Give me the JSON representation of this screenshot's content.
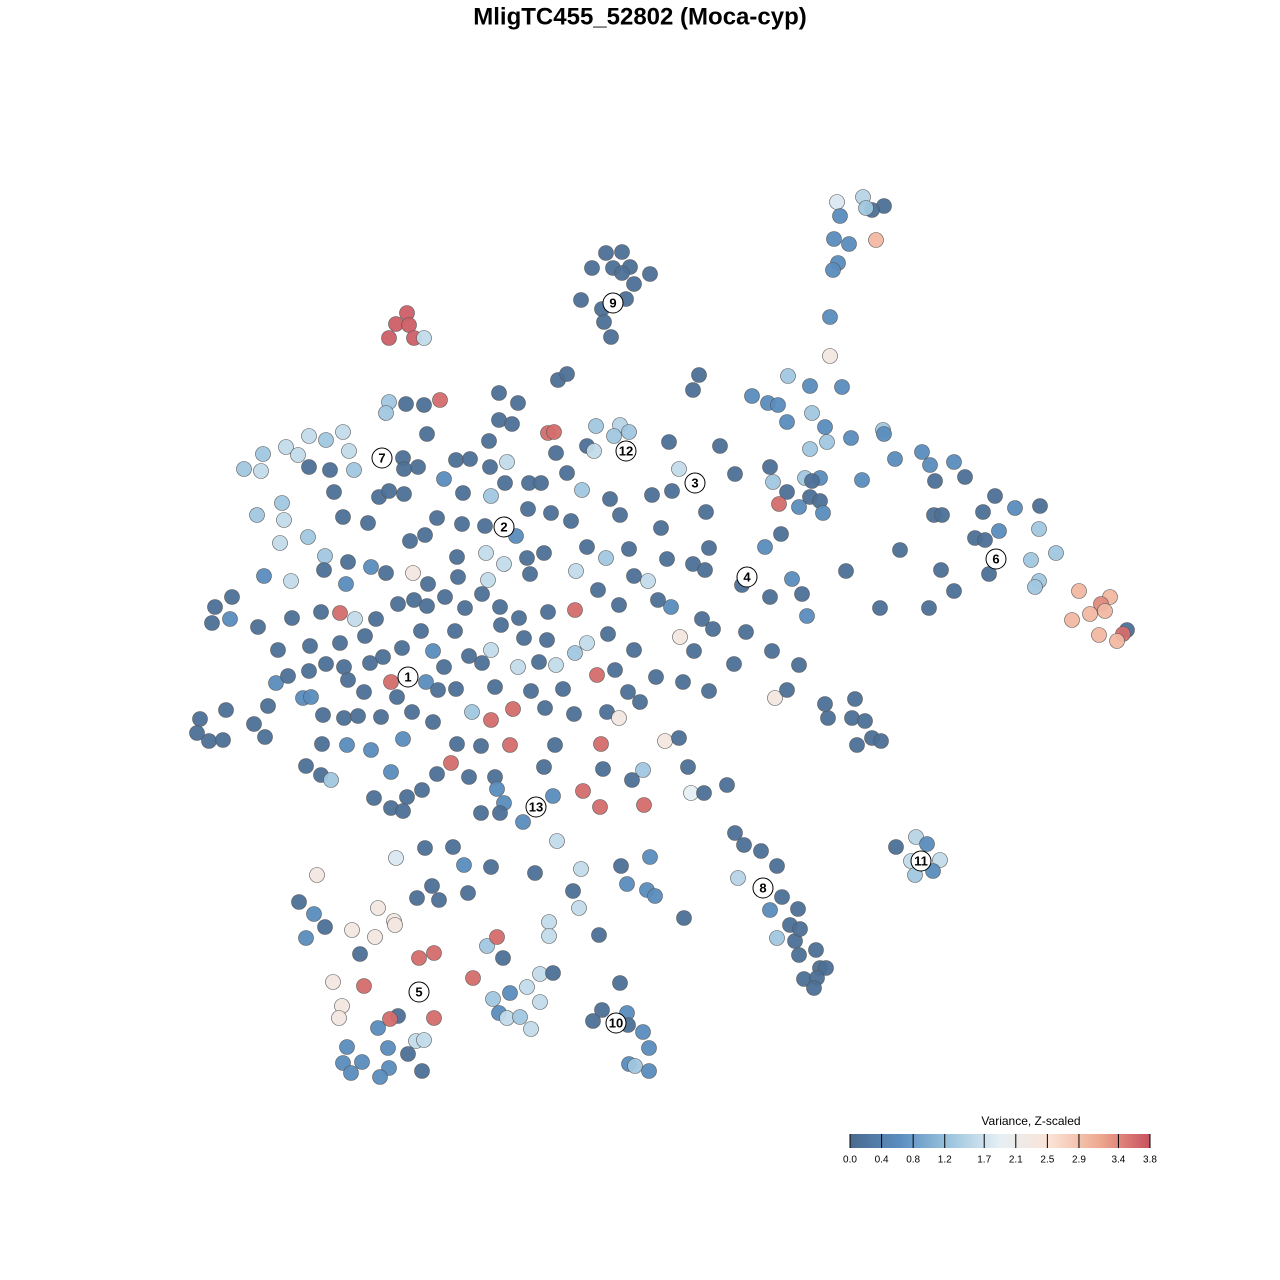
{
  "chart_data": {
    "type": "scatter",
    "title": "MligTC455_52802 (Moca-cyp)",
    "xlim": [
      0,
      96
    ],
    "ylim": [
      0,
      92
    ],
    "x": [
      65.7,
      68.3,
      70.4,
      69.2,
      66.0,
      68.6,
      65.4,
      66.9,
      69.6,
      65.8,
      65.3,
      65.0,
      65.0,
      42.6,
      44.2,
      43.3,
      41.2,
      45.0,
      44.2,
      47.0,
      45.4,
      40.1,
      44.6,
      42.2,
      42.4,
      43.1,
      22.7,
      21.6,
      22.9,
      20.9,
      23.4,
      24.4,
      37.8,
      38.7,
      51.9,
      51.3,
      22.6,
      24.4,
      26.0,
      20.9,
      20.6,
      31.9,
      33.8,
      31.9,
      33.2,
      36.8,
      37.4,
      41.6,
      44.0,
      43.4,
      44.9,
      40.7,
      41.4,
      24.7,
      30.9,
      16.3,
      12.9,
      14.6,
      16.9,
      10.6,
      8.3,
      6.4,
      8.1,
      11.8,
      12.9,
      15.0,
      17.4,
      22.3,
      23.8,
      22.4,
      27.6,
      29.0,
      31.0,
      32.7,
      37.6,
      38.7,
      48.9,
      49.9,
      54.0,
      55.5,
      15.4,
      19.9,
      20.9,
      22.4,
      26.4,
      28.3,
      31.1,
      32.5,
      34.9,
      36.1,
      40.2,
      43.0,
      47.2,
      49.2,
      10.2,
      7.7,
      10.4,
      16.3,
      18.8,
      25.7,
      28.2,
      30.5,
      34.8,
      37.1,
      39.1,
      44.0,
      48.1,
      52.6,
      10.0,
      12.8,
      14.5,
      16.8,
      23.0,
      24.5,
      27.7,
      30.6,
      33.6,
      34.7,
      36.4,
      40.7,
      42.6,
      44.9,
      48.7,
      52.9,
      58.5,
      60.1,
      8.4,
      11.1,
      14.4,
      16.6,
      19.1,
      20.6,
      23.3,
      24.8,
      27.8,
      30.8,
      32.4,
      35.0,
      39.6,
      41.8,
      45.4,
      46.8,
      51.3,
      52.5,
      56.2,
      59.0,
      61.2,
      62.2,
      3.5,
      5.2,
      3.2,
      5.0,
      7.8,
      11.2,
      14.1,
      16.0,
      17.5,
      19.6,
      21.8,
      23.4,
      24.7,
      26.5,
      28.5,
      30.2,
      32.0,
      33.9,
      36.8,
      39.5,
      43.9,
      47.8,
      49.1,
      52.2,
      62.7,
      9.8,
      13.0,
      16.0,
      18.5,
      22.2,
      24.1,
      25.3,
      27.5,
      28.9,
      31.1,
      32.1,
      34.4,
      36.7,
      39.5,
      40.7,
      42.8,
      45.4,
      50.0,
      53.3,
      56.6,
      51.4,
      59.2,
      12.9,
      14.6,
      16.4,
      19.0,
      20.3,
      21.1,
      24.6,
      26.4,
      30.2,
      33.8,
      35.9,
      37.6,
      41.7,
      43.5,
      47.6,
      50.3,
      55.4,
      61.9,
      9.6,
      10.8,
      12.3,
      13.1,
      16.8,
      18.4,
      21.7,
      25.8,
      27.6,
      31.5,
      35.1,
      38.3,
      44.8,
      46.0,
      52.9,
      59.5,
      60.7,
      2.0,
      1.7,
      2.9,
      4.3,
      4.6,
      7.4,
      8.5,
      8.8,
      14.3,
      16.4,
      17.8,
      20.1,
      23.2,
      25.3,
      29.2,
      31.1,
      33.3,
      36.5,
      39.4,
      42.7,
      43.9,
      48.5,
      49.9,
      64.8,
      64.5,
      67.2,
      67.5,
      68.5,
      69.2,
      70.1,
      67.7,
      14.2,
      16.7,
      19.1,
      22.3,
      27.7,
      30.1,
      33.0,
      37.5,
      42.1,
      12.6,
      14.1,
      15.1,
      21.1,
      25.7,
      27.1,
      28.9,
      31.5,
      36.4,
      42.3,
      46.3,
      50.8,
      45.2,
      19.4,
      22.7,
      24.2,
      31.7,
      37.3,
      40.3,
      51.1,
      52.4,
      54.7,
      21.1,
      22.3,
      30.1,
      32.4,
      32.0,
      34.3,
      42.0,
      46.4,
      55.5,
      56.4,
      58.1,
      59.7,
      37.7,
      21.6,
      24.5,
      27.3,
      28.4,
      31.1,
      35.5,
      40.1,
      44.1,
      47.0,
      55.8,
      13.7,
      25.2,
      28.8,
      23.7,
      25.9,
      39.3,
      44.7,
      46.7,
      47.5,
      39.9,
      50.4,
      59.0,
      60.2,
      61.8,
      61.0,
      61.5,
      59.7,
      62.0,
      61.9,
      63.6,
      64.0,
      64.6,
      62.4,
      63.7,
      63.4,
      11.9,
      13.4,
      12.6,
      14.5,
      19.8,
      17.2,
      19.5,
      21.4,
      21.5,
      18.0,
      23.9,
      25.4,
      30.7,
      31.7,
      36.9,
      36.9,
      41.9,
      32.3,
      29.3,
      15.3,
      18.4,
      16.2,
      15.9,
      33.0,
      34.7,
      36.0,
      37.3,
      31.3,
      36.0,
      31.9,
      32.7,
      34.0,
      35.1,
      25.4,
      21.8,
      21.0,
      19.8,
      16.7,
      16.3,
      17.1,
      18.2,
      20.8,
      20.9,
      20.0,
      22.8,
      23.6,
      24.4,
      24.2,
      44.0,
      42.2,
      44.7,
      41.3,
      44.8,
      46.3,
      46.9,
      44.9,
      45.5,
      46.9,
      71.6,
      73.6,
      74.7,
      73.1,
      76.0,
      73.5,
      75.3,
      57.2,
      58.8,
      59.8,
      60.8,
      63.0,
      66.2,
      63.2,
      60.7,
      64.5,
      64.7,
      67.1,
      70.3,
      70.4,
      63.0,
      71.5,
      74.2,
      75.0,
      77.4,
      78.5,
      75.5,
      68.2,
      59.0,
      59.3,
      62.5,
      64.0,
      63.2,
      60.7,
      63.0,
      64.0,
      59.9,
      61.9,
      64.3,
      81.5,
      83.5,
      86.0,
      80.3,
      75.4,
      76.2,
      85.9,
      79.5,
      81.9,
      80.5,
      72.0,
      87.6,
      85.1,
      80.9,
      76.1,
      66.6,
      85.9,
      85.5,
      77.4,
      89.9,
      74.9,
      70.0,
      93.0,
      92.1,
      92.5,
      91.0,
      89.2,
      94.7,
      94.3,
      91.9,
      93.7
    ],
    "y": [
      89.8,
      90.3,
      89.4,
      89.0,
      88.4,
      89.2,
      86.1,
      85.6,
      86.0,
      83.7,
      83.0,
      78.3,
      74.4,
      84.7,
      84.8,
      83.2,
      83.2,
      83.3,
      82.7,
      82.6,
      81.6,
      80.0,
      80.1,
      79.1,
      77.8,
      76.3,
      78.7,
      77.6,
      77.5,
      76.2,
      76.2,
      76.2,
      72.0,
      72.6,
      72.5,
      71.0,
      69.6,
      69.5,
      70.0,
      69.8,
      68.7,
      70.7,
      69.7,
      68.0,
      67.6,
      66.7,
      66.8,
      67.4,
      67.5,
      66.4,
      66.8,
      65.4,
      64.9,
      66.6,
      65.9,
      66.8,
      66.4,
      66.0,
      64.9,
      65.3,
      64.6,
      63.1,
      62.9,
      64.5,
      63.3,
      63.0,
      63.0,
      64.2,
      63.3,
      63.1,
      64.0,
      64.1,
      63.3,
      63.8,
      64.7,
      62.7,
      65.8,
      63.1,
      65.4,
      62.6,
      60.8,
      60.3,
      60.9,
      60.6,
      62.1,
      60.7,
      60.4,
      61.7,
      61.7,
      61.7,
      61.0,
      60.1,
      60.5,
      60.9,
      59.7,
      58.5,
      58.0,
      58.3,
      57.7,
      58.2,
      57.6,
      57.4,
      59.1,
      58.7,
      57.9,
      58.5,
      57.2,
      58.8,
      55.7,
      56.3,
      54.4,
      53.8,
      55.9,
      56.5,
      54.3,
      54.7,
      56.4,
      54.2,
      54.7,
      55.3,
      54.2,
      55.1,
      54.1,
      55.2,
      55.3,
      56.6,
      52.4,
      51.9,
      53.0,
      51.6,
      53.3,
      52.7,
      52.7,
      51.6,
      52.3,
      52.0,
      53.6,
      52.6,
      52.9,
      51.0,
      52.4,
      51.9,
      53.6,
      53.0,
      51.5,
      50.3,
      52.1,
      50.6,
      49.3,
      50.3,
      47.7,
      48.1,
      47.3,
      48.2,
      48.8,
      48.7,
      48.1,
      48.1,
      49.6,
      50.0,
      49.4,
      50.3,
      49.2,
      50.6,
      49.3,
      48.2,
      48.8,
      49.0,
      49.5,
      50.0,
      49.3,
      48.1,
      48.4,
      45.0,
      45.4,
      45.7,
      46.4,
      45.2,
      46.9,
      44.9,
      46.9,
      44.4,
      45.0,
      47.5,
      46.2,
      46.0,
      44.7,
      45.7,
      46.6,
      45.0,
      46.3,
      47.1,
      46.8,
      44.9,
      44.9,
      42.9,
      43.6,
      43.3,
      43.7,
      44.3,
      41.8,
      41.8,
      43.3,
      43.7,
      43.3,
      43.8,
      43.5,
      42.5,
      43.0,
      42.3,
      41.8,
      43.6,
      43.5,
      41.7,
      42.4,
      40.2,
      40.3,
      42.0,
      40.8,
      40.3,
      41.0,
      41.1,
      41.3,
      40.9,
      41.1,
      40.8,
      39.8,
      40.9,
      40.2,
      41.0,
      38.1,
      36.7,
      35.9,
      36.0,
      39.0,
      37.6,
      36.3,
      39.4,
      38.5,
      38.2,
      38.4,
      38.3,
      38.8,
      37.8,
      38.8,
      38.0,
      39.1,
      39.2,
      38.6,
      38.8,
      38.2,
      35.9,
      36.2,
      38.2,
      39.6,
      38.2,
      40.1,
      37.9,
      36.2,
      35.9,
      35.5,
      35.6,
      35.5,
      35.0,
      36.1,
      35.6,
      35.4,
      35.5,
      35.5,
      35.6,
      33.4,
      32.5,
      32.0,
      32.8,
      32.6,
      33.7,
      32.3,
      32.3,
      33.3,
      33.1,
      33.0,
      33.3,
      32.0,
      30.2,
      30.3,
      31.0,
      31.1,
      30.4,
      30.9,
      30.7,
      30.7,
      31.5,
      29.2,
      28.9,
      28.7,
      29.7,
      28.7,
      27.8,
      29.3,
      29.5,
      26.7,
      25.5,
      24.9,
      23.4,
      25.9,
      24.2,
      25.2,
      25.3,
      23.5,
      23.3,
      22.7,
      23.1,
      23.4,
      24.3,
      22.2,
      22.5,
      21.4,
      20.7,
      20.2,
      20.0,
      20.9,
      21.6,
      21.0,
      20.4,
      19.2,
      18.2,
      19.0,
      20.3,
      19.1,
      17.5,
      15.9,
      16.2,
      17.1,
      14.5,
      15.0,
      13.2,
      13.2,
      12.1,
      12.2,
      11.2,
      19.8,
      18.6,
      16.2,
      17.3,
      19.2,
      17.0,
      16.3,
      17.9,
      17.5,
      14.6,
      14.2,
      14.7,
      15.4,
      16.3,
      17.8,
      16.4,
      16.5,
      14.2,
      12.2,
      11.8,
      11.4,
      9.4,
      8.2,
      10.7,
      11.3,
      12.6,
      12.7,
      10.1,
      9.8,
      8.7,
      8.2,
      8.3,
      7.1,
      8.2,
      8.4,
      8.1,
      7.2,
      5.3,
      3.7,
      2.7,
      3.8,
      5.2,
      3.2,
      2.3,
      4.6,
      5.9,
      6.0,
      2.9,
      11.7,
      9.0,
      8.7,
      7.9,
      7.5,
      6.8,
      5.2,
      3.6,
      3.4,
      2.9,
      25.3,
      26.3,
      25.6,
      23.9,
      24.0,
      22.5,
      22.9,
      70.4,
      69.7,
      69.5,
      72.4,
      71.4,
      71.3,
      68.7,
      67.8,
      67.3,
      65.8,
      66.2,
      67.0,
      66.6,
      65.1,
      64.1,
      64.8,
      63.5,
      63.8,
      62.3,
      61.9,
      62.0,
      63.3,
      61.8,
      62.2,
      62.2,
      61.9,
      60.8,
      60.3,
      59.9,
      59.6,
      59.3,
      58.7,
      60.4,
      59.2,
      59.4,
      58.8,
      58.5,
      58.5,
      57.1,
      56.2,
      56.9,
      56.0,
      55.0,
      54.7,
      54.0,
      52.6,
      53.0,
      52.9,
      51.9,
      51.3,
      50.9,
      50.9,
      49.2,
      49.2,
      50.3,
      49.6,
      48.9,
      48.6,
      48.0,
      47.0,
      46.6,
      46.5,
      45.9
    ],
    "values": [
      1.8,
      1.5,
      0.1,
      0.1,
      0.6,
      1.3,
      0.6,
      0.6,
      3.0,
      0.6,
      0.6,
      0.6,
      2.3,
      0.1,
      0.1,
      0.1,
      0.1,
      0.1,
      0.1,
      0.1,
      0.1,
      0.1,
      0.1,
      0.1,
      0.1,
      0.1,
      3.7,
      3.7,
      3.7,
      3.7,
      3.7,
      1.6,
      0.1,
      0.1,
      0.1,
      0.1,
      0.1,
      0.1,
      3.6,
      1.3,
      1.3,
      0.1,
      0.1,
      0.1,
      0.1,
      3.6,
      3.6,
      1.3,
      1.5,
      1.3,
      1.3,
      0.1,
      1.6,
      0.1,
      0.1,
      1.6,
      1.6,
      1.3,
      1.6,
      1.6,
      1.3,
      1.3,
      1.6,
      1.6,
      0.1,
      0.1,
      1.3,
      0.1,
      0.1,
      0.1,
      0.1,
      0.1,
      0.1,
      1.6,
      0.1,
      0.1,
      0.1,
      1.6,
      0.1,
      0.1,
      0.1,
      0.1,
      0.1,
      0.1,
      0.6,
      0.1,
      1.3,
      0.1,
      0.1,
      0.1,
      1.3,
      0.1,
      0.1,
      0.1,
      1.3,
      1.3,
      1.6,
      0.1,
      0.1,
      0.1,
      0.1,
      0.1,
      0.1,
      0.1,
      0.1,
      0.1,
      0.1,
      0.1,
      1.6,
      1.3,
      1.3,
      0.1,
      0.1,
      0.1,
      0.1,
      1.6,
      0.6,
      0.1,
      0.1,
      0.1,
      1.3,
      0.1,
      0.1,
      0.1,
      0.6,
      0.1,
      0.6,
      1.6,
      0.1,
      0.6,
      0.6,
      0.1,
      2.3,
      0.1,
      0.1,
      1.6,
      1.6,
      0.1,
      1.6,
      0.1,
      0.1,
      1.6,
      0.1,
      0.1,
      0.1,
      0.1,
      0.6,
      0.1,
      0.1,
      0.1,
      0.1,
      0.6,
      0.1,
      0.1,
      0.1,
      3.6,
      1.6,
      0.1,
      0.1,
      0.1,
      0.1,
      0.1,
      0.1,
      0.1,
      0.1,
      0.1,
      0.1,
      3.6,
      0.1,
      0.1,
      0.6,
      0.1,
      0.6,
      0.1,
      0.1,
      0.1,
      0.1,
      0.1,
      0.1,
      0.6,
      0.1,
      0.1,
      1.6,
      0.1,
      0.1,
      0.1,
      1.3,
      1.6,
      0.1,
      0.1,
      2.3,
      0.1,
      0.1,
      0.1,
      0.1,
      0.1,
      0.1,
      0.1,
      0.1,
      0.1,
      3.6,
      0.6,
      0.1,
      0.1,
      1.6,
      0.1,
      1.6,
      3.6,
      0.1,
      0.1,
      0.1,
      0.1,
      0.1,
      0.6,
      0.1,
      0.6,
      0.6,
      0.1,
      0.1,
      0.1,
      0.1,
      0.1,
      0.1,
      0.1,
      0.1,
      0.1,
      0.1,
      0.1,
      2.3,
      0.1,
      0.1,
      0.1,
      0.1,
      0.1,
      0.1,
      0.1,
      0.1,
      0.1,
      0.1,
      0.1,
      0.1,
      0.1,
      0.1,
      0.1,
      1.3,
      3.6,
      3.6,
      0.1,
      0.1,
      0.1,
      2.3,
      2.3,
      0.1,
      0.1,
      0.1,
      0.1,
      0.1,
      0.1,
      0.1,
      0.1,
      0.1,
      0.1,
      0.6,
      0.6,
      0.6,
      0.1,
      0.1,
      3.6,
      0.1,
      3.6,
      0.1,
      0.1,
      1.3,
      0.6,
      0.1,
      3.6,
      0.1,
      0.1,
      0.1,
      0.1,
      1.3,
      0.1,
      0.1,
      0.1,
      0.1,
      0.1,
      0.6,
      0.6,
      3.6,
      1.9,
      0.1,
      0.1,
      0.1,
      0.1,
      0.1,
      0.6,
      0.1,
      0.6,
      3.6,
      3.6,
      0.1,
      0.1,
      0.1,
      0.1,
      1.6,
      1.8,
      0.1,
      0.1,
      0.6,
      0.1,
      0.1,
      1.6,
      0.1,
      0.6,
      1.5,
      2.3,
      0.1,
      0.1,
      0.1,
      0.1,
      0.1,
      0.6,
      0.6,
      0.6,
      1.6,
      0.1,
      0.6,
      0.1,
      0.1,
      0.1,
      0.1,
      1.3,
      0.1,
      0.1,
      0.1,
      0.1,
      0.1,
      0.1,
      0.1,
      0.1,
      0.1,
      0.6,
      0.6,
      0.1,
      2.3,
      2.3,
      2.3,
      2.3,
      2.3,
      0.1,
      3.6,
      3.6,
      1.3,
      3.6,
      1.6,
      1.6,
      0.1,
      0.1,
      3.6,
      2.3,
      3.6,
      2.3,
      2.3,
      0.6,
      1.6,
      1.6,
      0.1,
      1.3,
      1.6,
      0.6,
      1.6,
      1.3,
      1.6,
      3.6,
      0.1,
      3.6,
      0.6,
      0.6,
      0.6,
      0.6,
      0.6,
      0.6,
      0.6,
      0.6,
      0.1,
      1.6,
      1.6,
      0.1,
      0.1,
      0.1,
      0.6,
      0.1,
      0.1,
      0.6,
      0.6,
      0.6,
      1.3,
      0.6,
      0.1,
      1.5,
      0.6,
      1.6,
      1.6,
      1.3,
      0.6,
      0.6,
      0.6,
      0.6,
      1.3,
      0.6,
      0.6,
      1.3,
      0.6,
      0.6,
      1.3,
      0.6,
      1.3,
      0.6,
      1.3,
      0.6,
      0.6,
      0.6,
      0.6,
      0.1,
      0.1,
      0.6,
      0.1,
      1.3,
      1.3,
      0.6,
      0.1,
      0.1,
      0.1,
      0.1,
      3.6,
      0.6,
      0.6,
      0.1,
      0.6,
      0.1,
      0.1,
      0.1,
      0.1,
      1.3,
      0.1,
      0.6,
      0.1,
      0.1,
      1.3,
      1.3,
      0.1,
      0.1,
      0.1,
      1.3,
      1.3,
      0.1,
      3.0,
      0.1,
      0.1,
      3.0,
      3.4,
      3.0,
      3.0,
      3.0,
      0.1,
      3.6,
      3.0,
      3.0
    ],
    "annotations": [
      {
        "text": "1",
        "x": 22.8,
        "y": 42.3
      },
      {
        "text": "2",
        "x": 32.4,
        "y": 57.3
      },
      {
        "text": "3",
        "x": 51.5,
        "y": 61.7
      },
      {
        "text": "4",
        "x": 56.7,
        "y": 52.3
      },
      {
        "text": "5",
        "x": 23.9,
        "y": 10.8
      },
      {
        "text": "6",
        "x": 81.6,
        "y": 54.1
      },
      {
        "text": "7",
        "x": 20.2,
        "y": 64.2
      },
      {
        "text": "8",
        "x": 58.3,
        "y": 21.2
      },
      {
        "text": "9",
        "x": 43.3,
        "y": 79.7
      },
      {
        "text": "10",
        "x": 43.6,
        "y": 7.7
      },
      {
        "text": "11",
        "x": 74.1,
        "y": 23.9
      },
      {
        "text": "12",
        "x": 44.6,
        "y": 64.9
      },
      {
        "text": "13",
        "x": 35.6,
        "y": 29.3
      }
    ],
    "colorbar": {
      "title": "Variance, Z-scaled",
      "lim": [
        0,
        3.8
      ],
      "ticks": [
        {
          "value": 0,
          "label": "0.0"
        },
        0.4,
        0.8,
        1.2,
        1.7,
        2.1,
        2.5,
        2.9,
        3.4,
        3.8
      ],
      "colormap": [
        "#4a6a8f",
        "#5b8ec0",
        "#9cc5de",
        "#e6eff4",
        "#fbe3d6",
        "#eea98f",
        "#c8515e"
      ]
    }
  }
}
